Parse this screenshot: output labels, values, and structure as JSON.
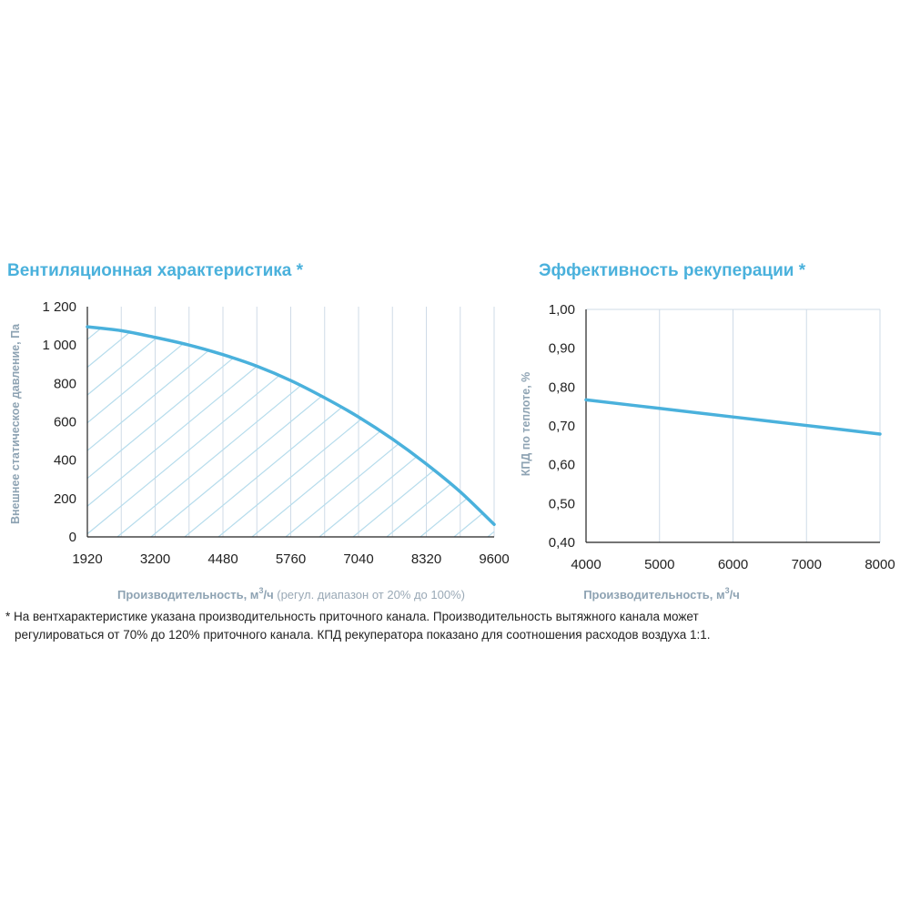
{
  "chart_data": [
    {
      "type": "line",
      "title": "Вентиляционная характеристика *",
      "xlabel_main": "Производительность, м",
      "xlabel_sup": "3",
      "xlabel_unit": "/ч",
      "xlabel_note": " (регул. диапазон от 20% до 100%)",
      "ylabel": "Внешнее статическое давление, Па",
      "x_ticks": [
        1920,
        3200,
        4480,
        5760,
        7040,
        8320,
        9600
      ],
      "x_tick_labels": [
        "1920",
        "3200",
        "4480",
        "5760",
        "7040",
        "8320",
        "9600"
      ],
      "y_ticks": [
        0,
        200,
        400,
        600,
        800,
        1000,
        1200
      ],
      "y_tick_labels": [
        "0",
        "200",
        "400",
        "600",
        "800",
        "1 000",
        "1 200"
      ],
      "xlim": [
        1920,
        9600
      ],
      "ylim": [
        0,
        1200
      ],
      "grid": "vertical",
      "fill": "hatched area under curve",
      "series": [
        {
          "x": [
            1920,
            2560,
            3200,
            3840,
            4480,
            5120,
            5760,
            6400,
            7040,
            7680,
            8320,
            8960,
            9600
          ],
          "y": [
            1095,
            1075,
            1040,
            1000,
            950,
            890,
            815,
            725,
            625,
            510,
            380,
            235,
            65
          ]
        }
      ]
    },
    {
      "type": "line",
      "title": "Эффективность рекуперации *",
      "xlabel_main": "Производительность, м",
      "xlabel_sup": "3",
      "xlabel_unit": "/ч",
      "ylabel": "КПД по теплоте, %",
      "x_ticks": [
        4000,
        5000,
        6000,
        7000,
        8000
      ],
      "x_tick_labels": [
        "4000",
        "5000",
        "6000",
        "7000",
        "8000"
      ],
      "y_ticks": [
        0.4,
        0.5,
        0.6,
        0.7,
        0.8,
        0.9,
        1.0
      ],
      "y_tick_labels": [
        "0,40",
        "0,50",
        "0,60",
        "0,70",
        "0,80",
        "0,90",
        "1,00"
      ],
      "xlim": [
        4000,
        8000
      ],
      "ylim": [
        0.4,
        1.0
      ],
      "grid": "vertical",
      "series": [
        {
          "x": [
            4000,
            5000,
            6000,
            7000,
            8000
          ],
          "y": [
            0.767,
            0.745,
            0.723,
            0.701,
            0.679
          ]
        }
      ]
    }
  ],
  "colors": {
    "line": "#4ab1dc",
    "title": "#4ab1dc",
    "grid": "#cfdbe7",
    "hatch": "#b6dcec",
    "axis_label": "#8ea3b3"
  },
  "footnote": {
    "line1": "* На вентхарактеристике указана производительность приточного канала. Производительность вытяжного канала может",
    "line2": "регулироваться от 70% до 120% приточного канала. КПД рекуператора показано для соотношения расходов воздуха 1:1."
  }
}
